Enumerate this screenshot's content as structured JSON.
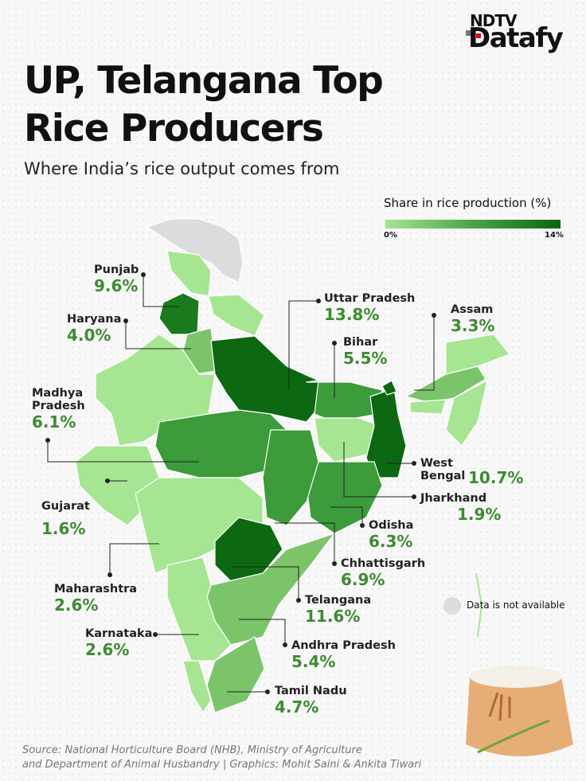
{
  "logo": {
    "line1": "NDTV",
    "line2": "Datafy"
  },
  "title": "UP, Telangana Top Rice Producers",
  "subtitle": "Where India’s rice output comes from",
  "legend": {
    "title": "Share in rice production (%)",
    "min": "0%",
    "max": "14%",
    "colors": [
      "#a6e591",
      "#0a6610"
    ]
  },
  "states": [
    {
      "name": "Punjab",
      "value": "9.6%"
    },
    {
      "name": "Haryana",
      "value": "4.0%"
    },
    {
      "name": "Madhya Pradesh",
      "value": "6.1%"
    },
    {
      "name": "Gujarat",
      "value": "1.6%"
    },
    {
      "name": "Maharashtra",
      "value": "2.6%"
    },
    {
      "name": "Karnataka",
      "value": "2.6%"
    },
    {
      "name": "Uttar Pradesh",
      "value": "13.8%"
    },
    {
      "name": "Assam",
      "value": "3.3%"
    },
    {
      "name": "Bihar",
      "value": "5.5%"
    },
    {
      "name": "West Bengal",
      "value": "10.7%"
    },
    {
      "name": "Jharkhand",
      "value": "1.9%"
    },
    {
      "name": "Odisha",
      "value": "6.3%"
    },
    {
      "name": "Chhattisgarh",
      "value": "6.9%"
    },
    {
      "name": "Telangana",
      "value": "11.6%"
    },
    {
      "name": "Andhra Pradesh",
      "value": "5.4%"
    },
    {
      "name": "Tamil Nadu",
      "value": "4.7%"
    }
  ],
  "na_label": "Data is not available",
  "source": {
    "line1": "Source: National Horticulture Board (NHB), Ministry of Agriculture",
    "line2": "and Department of Animal Husbandry | Graphics: Mohit Saini & Ankita Tiwari"
  }
}
